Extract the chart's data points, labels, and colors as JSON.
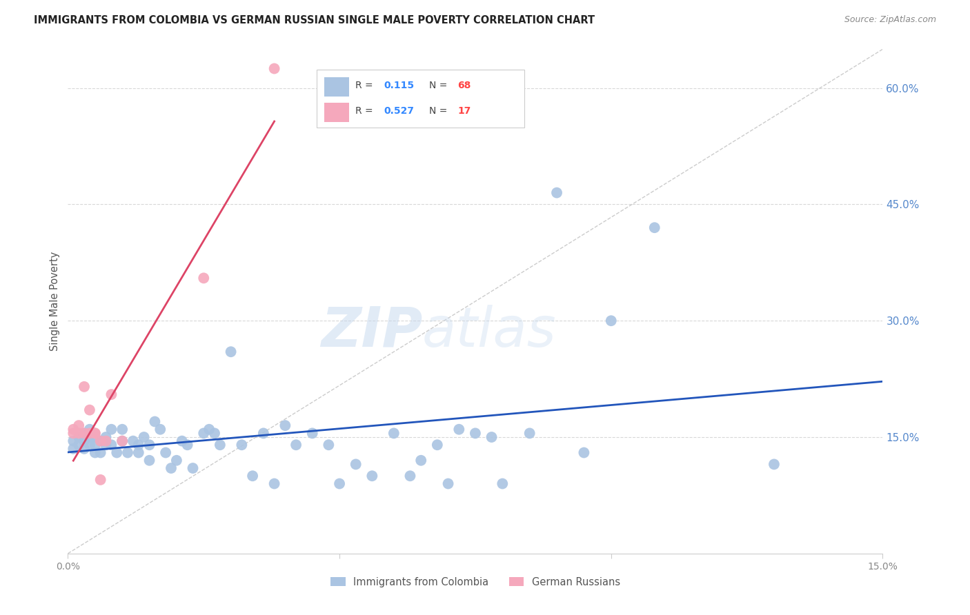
{
  "title": "IMMIGRANTS FROM COLOMBIA VS GERMAN RUSSIAN SINGLE MALE POVERTY CORRELATION CHART",
  "source": "Source: ZipAtlas.com",
  "ylabel": "Single Male Poverty",
  "right_yticks": [
    "60.0%",
    "45.0%",
    "30.0%",
    "15.0%"
  ],
  "right_ytick_vals": [
    0.6,
    0.45,
    0.3,
    0.15
  ],
  "xlim": [
    0.0,
    0.15
  ],
  "ylim": [
    0.0,
    0.65
  ],
  "colombia_R": "0.115",
  "colombia_N": "68",
  "german_R": "0.527",
  "german_N": "17",
  "colombia_color": "#aac4e2",
  "german_color": "#f5a8bc",
  "regression_colombia_color": "#2255bb",
  "regression_german_color": "#dd4466",
  "diagonal_color": "#cccccc",
  "colombia_points_x": [
    0.001,
    0.001,
    0.002,
    0.002,
    0.003,
    0.003,
    0.003,
    0.004,
    0.004,
    0.004,
    0.005,
    0.005,
    0.005,
    0.006,
    0.006,
    0.007,
    0.007,
    0.008,
    0.008,
    0.009,
    0.01,
    0.01,
    0.011,
    0.012,
    0.013,
    0.013,
    0.014,
    0.015,
    0.015,
    0.016,
    0.017,
    0.018,
    0.019,
    0.02,
    0.021,
    0.022,
    0.023,
    0.025,
    0.026,
    0.027,
    0.028,
    0.03,
    0.032,
    0.034,
    0.036,
    0.038,
    0.04,
    0.042,
    0.045,
    0.048,
    0.05,
    0.053,
    0.056,
    0.06,
    0.063,
    0.065,
    0.068,
    0.07,
    0.072,
    0.075,
    0.078,
    0.08,
    0.085,
    0.09,
    0.095,
    0.1,
    0.108,
    0.13
  ],
  "colombia_points_y": [
    0.145,
    0.135,
    0.15,
    0.14,
    0.145,
    0.135,
    0.155,
    0.15,
    0.14,
    0.16,
    0.14,
    0.15,
    0.13,
    0.145,
    0.13,
    0.15,
    0.14,
    0.16,
    0.14,
    0.13,
    0.145,
    0.16,
    0.13,
    0.145,
    0.14,
    0.13,
    0.15,
    0.12,
    0.14,
    0.17,
    0.16,
    0.13,
    0.11,
    0.12,
    0.145,
    0.14,
    0.11,
    0.155,
    0.16,
    0.155,
    0.14,
    0.26,
    0.14,
    0.1,
    0.155,
    0.09,
    0.165,
    0.14,
    0.155,
    0.14,
    0.09,
    0.115,
    0.1,
    0.155,
    0.1,
    0.12,
    0.14,
    0.09,
    0.16,
    0.155,
    0.15,
    0.09,
    0.155,
    0.465,
    0.13,
    0.3,
    0.42,
    0.115
  ],
  "german_points_x": [
    0.001,
    0.001,
    0.002,
    0.002,
    0.003,
    0.003,
    0.004,
    0.004,
    0.005,
    0.005,
    0.006,
    0.006,
    0.007,
    0.008,
    0.01,
    0.025,
    0.038
  ],
  "german_points_y": [
    0.16,
    0.155,
    0.155,
    0.165,
    0.155,
    0.215,
    0.155,
    0.185,
    0.155,
    0.155,
    0.145,
    0.095,
    0.145,
    0.205,
    0.145,
    0.355,
    0.625
  ],
  "watermark_zip": "ZIP",
  "watermark_atlas": "atlas",
  "xtick_positions": [
    0.0,
    0.05,
    0.1,
    0.15
  ],
  "xtick_labels_show": [
    "0.0%",
    "",
    "",
    "15.0%"
  ]
}
